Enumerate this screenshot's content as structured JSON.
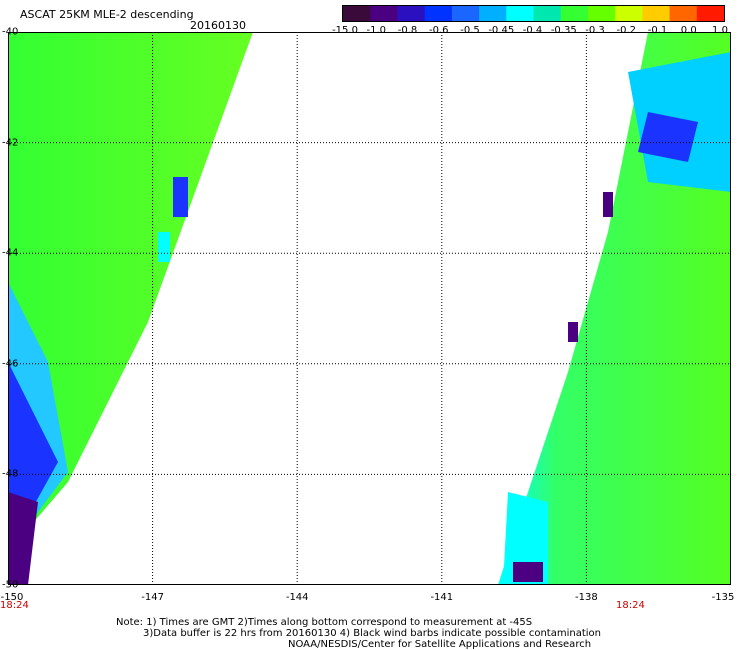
{
  "header": {
    "title": "ASCAT 25KM MLE-2 descending",
    "date": "20160130"
  },
  "colorbar": {
    "labels": [
      "-15.0",
      "-1.0",
      "-0.8",
      "-0.6",
      "-0.5",
      "-0.45",
      "-0.4",
      "-0.35",
      "-0.3",
      "-0.2",
      "-0.1",
      "0.0",
      "1.0"
    ],
    "colors": [
      "#3a0a3a",
      "#4b0082",
      "#2b10c0",
      "#0033ff",
      "#1a66ff",
      "#00b0ff",
      "#00ffff",
      "#00e8b0",
      "#33ff33",
      "#66ff00",
      "#ccff00",
      "#ffcc00",
      "#ff6600",
      "#ff1a00"
    ]
  },
  "map": {
    "lat_labels": [
      "-40",
      "-42",
      "-44",
      "-46",
      "-48",
      "-50"
    ],
    "lon_labels": [
      "-150",
      "-147",
      "-144",
      "-141",
      "-138",
      "-135"
    ],
    "time_labels": [
      "18:24",
      "18:24"
    ],
    "lat_range": [
      -50,
      -40
    ],
    "lon_range": [
      -150,
      -135
    ]
  },
  "notes": {
    "line1": "Note: 1) Times are GMT 2)Times along bottom correspond to measurement at -45S",
    "line2": "3)Data buffer is 22 hrs from 20160130 4) Black wind barbs indicate possible contamination",
    "line3": "NOAA/NESDIS/Center for Satellite Applications and Research"
  }
}
